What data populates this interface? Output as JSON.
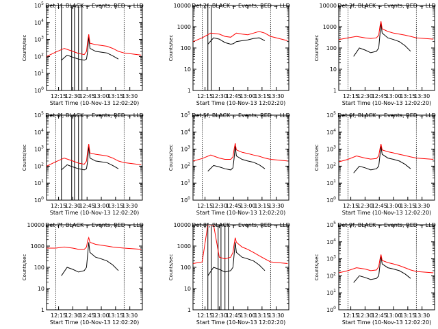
{
  "figure": {
    "xlabel": "Start Time (10-Nov-13 12:02:20)",
    "ylabel": "Counts/sec",
    "x_ticks": [
      {
        "t": 12.25,
        "label": "12:15"
      },
      {
        "t": 12.5,
        "label": "12:30"
      },
      {
        "t": 12.75,
        "label": "12:45"
      },
      {
        "t": 13.0,
        "label": "13:00"
      },
      {
        "t": 13.25,
        "label": "13:15"
      },
      {
        "t": 13.5,
        "label": "13:30"
      }
    ],
    "x_range": [
      12.0389,
      13.72
    ],
    "colors": {
      "events": "#000000",
      "lld": "#ff0000"
    }
  },
  "chart_data": [
    {
      "type": "line",
      "title": "Det 1f, BLACK = Events, RED = LLD",
      "ylabel": "Counts/sec",
      "ylim": [
        1,
        100000
      ],
      "yscale": "log",
      "y_tick_style": "exp",
      "y_ticks": [
        1,
        10,
        100,
        1000,
        10000,
        100000
      ],
      "vlines_solid": [
        12.3,
        12.48,
        12.53,
        12.6,
        12.66
      ],
      "vlines_dotted": [
        12.2,
        13.4
      ],
      "series": [
        {
          "name": "Events",
          "x": [
            12.3,
            12.4,
            12.5,
            12.6,
            12.7,
            12.74,
            12.76,
            12.78,
            12.8,
            12.9,
            13.0,
            13.1,
            13.2,
            13.3
          ],
          "values": [
            60,
            120,
            90,
            70,
            60,
            70,
            200,
            1500,
            300,
            200,
            180,
            160,
            110,
            70
          ]
        },
        {
          "name": "LLD",
          "x": [
            12.04,
            12.2,
            12.35,
            12.5,
            12.6,
            12.7,
            12.74,
            12.76,
            12.78,
            12.8,
            12.9,
            13.0,
            13.1,
            13.2,
            13.3,
            13.4,
            13.7
          ],
          "values": [
            100,
            180,
            300,
            200,
            150,
            130,
            200,
            800,
            2000,
            600,
            500,
            450,
            400,
            300,
            200,
            160,
            120
          ]
        }
      ]
    },
    {
      "type": "line",
      "title": "Det 2f, BLACK = Events, RED = LLD",
      "ylabel": "Counts/sec",
      "ylim": [
        1,
        10000
      ],
      "yscale": "log",
      "y_tick_style": "plain",
      "y_ticks": [
        1,
        10,
        100,
        1000,
        10000
      ],
      "vlines_solid": [
        12.3,
        12.36
      ],
      "vlines_dotted": [
        12.2,
        13.4
      ],
      "series": [
        {
          "name": "Events",
          "x": [
            12.3,
            12.4,
            12.5,
            12.6,
            12.7,
            12.75,
            12.8,
            12.9,
            13.0,
            13.1,
            13.2,
            13.3
          ],
          "values": [
            150,
            300,
            260,
            180,
            150,
            160,
            200,
            220,
            240,
            280,
            300,
            220
          ]
        },
        {
          "name": "LLD",
          "x": [
            12.04,
            12.2,
            12.35,
            12.5,
            12.6,
            12.7,
            12.75,
            12.8,
            12.9,
            13.0,
            13.1,
            13.2,
            13.3,
            13.4,
            13.7
          ],
          "values": [
            200,
            300,
            500,
            450,
            350,
            320,
            400,
            500,
            450,
            420,
            500,
            600,
            500,
            350,
            220
          ]
        }
      ]
    },
    {
      "type": "line",
      "title": "Det 3f, BLACK = Events, RED = LLD",
      "ylabel": "Counts/sec",
      "ylim": [
        1,
        10000
      ],
      "yscale": "log",
      "y_tick_style": "plain",
      "y_ticks": [
        1,
        10,
        100,
        1000,
        10000
      ],
      "vlines_solid": [],
      "vlines_dotted": [
        12.2,
        13.4
      ],
      "series": [
        {
          "name": "Events",
          "x": [
            12.3,
            12.4,
            12.5,
            12.6,
            12.7,
            12.74,
            12.76,
            12.78,
            12.8,
            12.9,
            13.0,
            13.1,
            13.2,
            13.3
          ],
          "values": [
            40,
            100,
            80,
            60,
            70,
            100,
            400,
            1500,
            500,
            300,
            250,
            200,
            130,
            70
          ]
        },
        {
          "name": "LLD",
          "x": [
            12.04,
            12.2,
            12.35,
            12.5,
            12.6,
            12.7,
            12.74,
            12.76,
            12.78,
            12.8,
            12.9,
            13.0,
            13.1,
            13.2,
            13.3,
            13.4,
            13.7
          ],
          "values": [
            250,
            300,
            350,
            300,
            280,
            300,
            400,
            1000,
            1800,
            800,
            600,
            500,
            450,
            400,
            350,
            300,
            260
          ]
        }
      ]
    },
    {
      "type": "line",
      "title": "Det 4f, BLACK = Events, RED = LLD",
      "ylabel": "Counts/sec",
      "ylim": [
        1,
        100000
      ],
      "yscale": "log",
      "y_tick_style": "exp",
      "y_ticks": [
        1,
        10,
        100,
        1000,
        10000,
        100000
      ],
      "vlines_solid": [
        12.3,
        12.48,
        12.53,
        12.6,
        12.66
      ],
      "vlines_dotted": [
        12.2,
        13.4
      ],
      "series": [
        {
          "name": "Events",
          "x": [
            12.3,
            12.4,
            12.5,
            12.6,
            12.7,
            12.74,
            12.76,
            12.78,
            12.8,
            12.9,
            13.0,
            13.1,
            13.2,
            13.3
          ],
          "values": [
            60,
            120,
            90,
            70,
            60,
            70,
            200,
            1500,
            300,
            200,
            180,
            160,
            110,
            70
          ]
        },
        {
          "name": "LLD",
          "x": [
            12.04,
            12.2,
            12.35,
            12.5,
            12.6,
            12.7,
            12.74,
            12.76,
            12.78,
            12.8,
            12.9,
            13.0,
            13.1,
            13.2,
            13.3,
            13.4,
            13.7
          ],
          "values": [
            100,
            180,
            300,
            200,
            150,
            130,
            200,
            800,
            2000,
            600,
            500,
            450,
            400,
            300,
            200,
            160,
            120
          ]
        }
      ]
    },
    {
      "type": "line",
      "title": "Det 5f, BLACK = Events, RED = LLD",
      "ylabel": "Counts/sec",
      "ylim": [
        1,
        100000
      ],
      "yscale": "log",
      "y_tick_style": "exp",
      "y_ticks": [
        1,
        10,
        100,
        1000,
        10000,
        100000
      ],
      "vlines_solid": [],
      "vlines_dotted": [
        12.2,
        13.4
      ],
      "series": [
        {
          "name": "Events",
          "x": [
            12.3,
            12.4,
            12.5,
            12.6,
            12.7,
            12.74,
            12.76,
            12.78,
            12.8,
            12.9,
            13.0,
            13.1,
            13.2,
            13.3
          ],
          "values": [
            50,
            110,
            90,
            70,
            60,
            80,
            300,
            1500,
            400,
            250,
            200,
            170,
            120,
            70
          ]
        },
        {
          "name": "LLD",
          "x": [
            12.04,
            12.2,
            12.35,
            12.5,
            12.6,
            12.7,
            12.74,
            12.76,
            12.78,
            12.8,
            12.9,
            13.0,
            13.1,
            13.2,
            13.3,
            13.4,
            13.7
          ],
          "values": [
            200,
            280,
            450,
            300,
            250,
            250,
            350,
            1000,
            2200,
            900,
            650,
            550,
            450,
            380,
            300,
            250,
            200
          ]
        }
      ]
    },
    {
      "type": "line",
      "title": "Det 6f, BLACK = Events, RED = LLD",
      "ylabel": "Counts/sec",
      "ylim": [
        1,
        100000
      ],
      "yscale": "log",
      "y_tick_style": "exp",
      "y_ticks": [
        1,
        10,
        100,
        1000,
        10000,
        100000
      ],
      "vlines_solid": [],
      "vlines_dotted": [
        12.2,
        13.4
      ],
      "series": [
        {
          "name": "Events",
          "x": [
            12.3,
            12.4,
            12.5,
            12.6,
            12.7,
            12.74,
            12.76,
            12.78,
            12.8,
            12.9,
            13.0,
            13.1,
            13.2,
            13.3
          ],
          "values": [
            40,
            100,
            80,
            60,
            70,
            100,
            400,
            1500,
            500,
            300,
            250,
            200,
            130,
            70
          ]
        },
        {
          "name": "LLD",
          "x": [
            12.04,
            12.2,
            12.35,
            12.5,
            12.6,
            12.7,
            12.74,
            12.76,
            12.78,
            12.8,
            12.9,
            13.0,
            13.1,
            13.2,
            13.3,
            13.4,
            13.7
          ],
          "values": [
            180,
            250,
            400,
            300,
            260,
            280,
            400,
            1000,
            2000,
            900,
            700,
            600,
            500,
            420,
            350,
            300,
            250
          ]
        }
      ]
    },
    {
      "type": "line",
      "title": "Det 7f, BLACK = Events, RED = LLD",
      "ylabel": "Counts/sec",
      "ylim": [
        1,
        10000
      ],
      "yscale": "log",
      "y_tick_style": "plain",
      "y_ticks": [
        1,
        10,
        100,
        1000,
        10000
      ],
      "vlines_solid": [],
      "vlines_dotted": [
        12.2,
        13.4
      ],
      "series": [
        {
          "name": "Events",
          "x": [
            12.3,
            12.4,
            12.5,
            12.6,
            12.7,
            12.74,
            12.76,
            12.78,
            12.8,
            12.9,
            13.0,
            13.1,
            13.2,
            13.3
          ],
          "values": [
            40,
            100,
            80,
            60,
            70,
            100,
            400,
            1500,
            500,
            300,
            250,
            200,
            130,
            70
          ]
        },
        {
          "name": "LLD",
          "x": [
            12.04,
            12.2,
            12.35,
            12.5,
            12.6,
            12.7,
            12.74,
            12.76,
            12.78,
            12.8,
            12.9,
            13.0,
            13.1,
            13.2,
            13.3,
            13.4,
            13.7
          ],
          "values": [
            800,
            800,
            900,
            800,
            700,
            700,
            900,
            1800,
            2500,
            1500,
            1200,
            1100,
            1000,
            900,
            850,
            800,
            700
          ]
        }
      ]
    },
    {
      "type": "line",
      "title": "Det 8f, BLACK = Events, RED = LLD",
      "ylabel": "Counts/sec",
      "ylim": [
        1,
        10000
      ],
      "yscale": "log",
      "y_tick_style": "plain",
      "y_ticks": [
        1,
        10,
        100,
        1000,
        10000
      ],
      "vlines_solid": [
        12.3,
        12.36,
        12.48,
        12.53,
        12.6,
        12.66
      ],
      "vlines_dotted": [
        12.2,
        13.4
      ],
      "series": [
        {
          "name": "Events",
          "x": [
            12.3,
            12.4,
            12.5,
            12.6,
            12.7,
            12.74,
            12.76,
            12.78,
            12.8,
            12.9,
            13.0,
            13.1,
            13.2,
            13.3
          ],
          "values": [
            40,
            100,
            80,
            60,
            70,
            100,
            400,
            1500,
            500,
            300,
            250,
            200,
            130,
            70
          ]
        },
        {
          "name": "LLD",
          "x": [
            12.04,
            12.2,
            12.3,
            12.33,
            12.4,
            12.5,
            12.6,
            12.7,
            12.74,
            12.76,
            12.78,
            12.8,
            12.9,
            13.0,
            13.1,
            13.2,
            13.3,
            13.4,
            13.7
          ],
          "values": [
            150,
            180,
            10000,
            10000,
            10000,
            300,
            250,
            300,
            500,
            1200,
            2500,
            1500,
            900,
            700,
            500,
            350,
            250,
            180,
            150
          ]
        }
      ]
    },
    {
      "type": "line",
      "title": "Det 9f, BLACK = Events, RED = LLD",
      "ylabel": "Counts/sec",
      "ylim": [
        1,
        100000
      ],
      "yscale": "log",
      "y_tick_style": "exp",
      "y_ticks": [
        1,
        10,
        100,
        1000,
        10000,
        100000
      ],
      "vlines_solid": [],
      "vlines_dotted": [
        12.2,
        13.4
      ],
      "series": [
        {
          "name": "Events",
          "x": [
            12.3,
            12.4,
            12.5,
            12.6,
            12.7,
            12.74,
            12.76,
            12.78,
            12.8,
            12.9,
            13.0,
            13.1,
            13.2,
            13.3
          ],
          "values": [
            40,
            100,
            80,
            60,
            70,
            100,
            400,
            1500,
            500,
            300,
            250,
            200,
            130,
            70
          ]
        },
        {
          "name": "LLD",
          "x": [
            12.04,
            12.2,
            12.35,
            12.5,
            12.6,
            12.7,
            12.74,
            12.76,
            12.78,
            12.8,
            12.9,
            13.0,
            13.1,
            13.2,
            13.3,
            13.4,
            13.7
          ],
          "values": [
            150,
            200,
            300,
            250,
            200,
            220,
            350,
            900,
            1800,
            800,
            600,
            500,
            400,
            300,
            220,
            180,
            150
          ]
        }
      ]
    }
  ]
}
